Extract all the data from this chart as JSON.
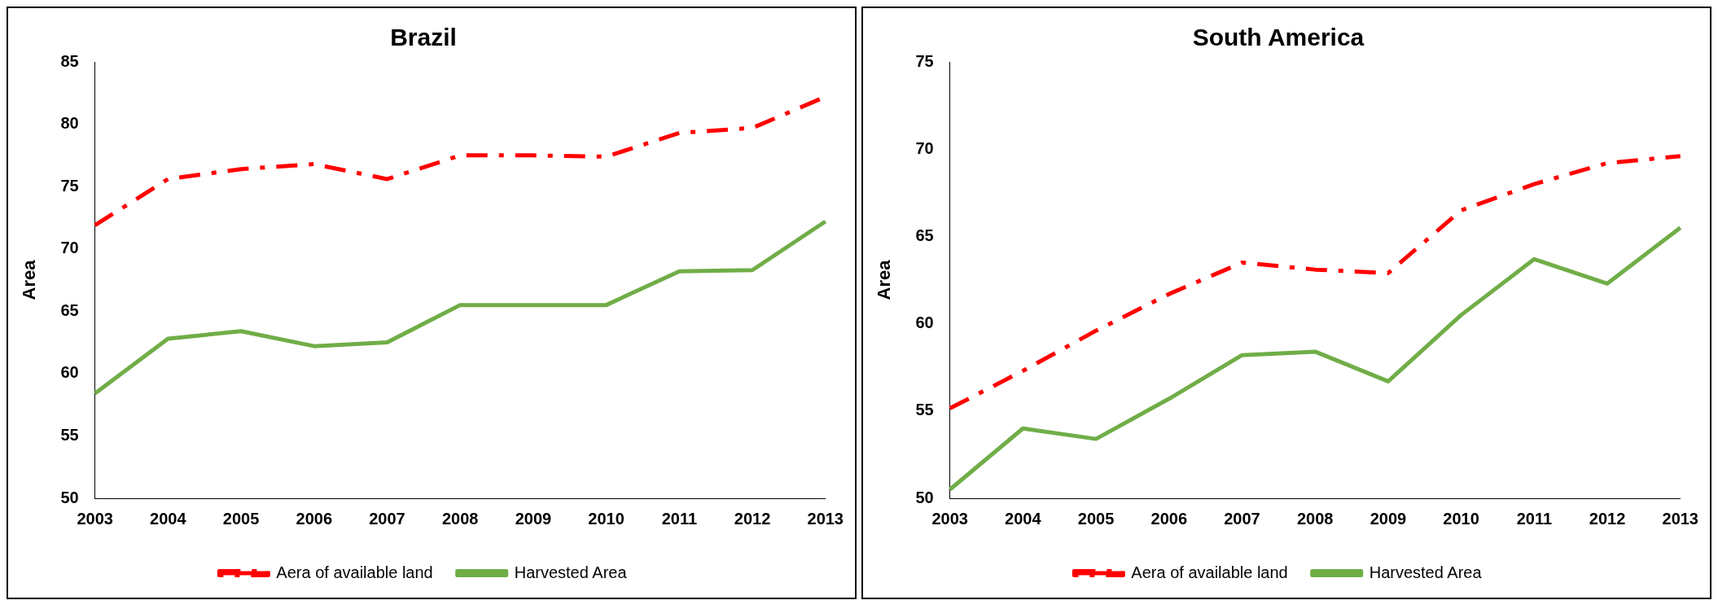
{
  "chart_data": [
    {
      "type": "line",
      "title": "Brazil",
      "ylabel": "Area",
      "categories": [
        "2003",
        "2004",
        "2005",
        "2006",
        "2007",
        "2008",
        "2009",
        "2010",
        "2011",
        "2012",
        "2013"
      ],
      "ylim": [
        50,
        85
      ],
      "yticks": [
        50,
        55,
        60,
        65,
        70,
        75,
        80,
        85
      ],
      "grid": false,
      "legend": "bottom",
      "marker": "none",
      "series": [
        {
          "name": "Aera of available land",
          "color": "#ff0000",
          "line_style": "dashed",
          "values": [
            71.9,
            75.6,
            76.4,
            76.8,
            75.6,
            77.5,
            77.5,
            77.4,
            79.3,
            79.7,
            82.2
          ]
        },
        {
          "name": "Harvested Area",
          "color": "#70ad47",
          "line_style": "solid",
          "values": [
            58.4,
            62.8,
            63.4,
            62.2,
            62.5,
            65.5,
            65.5,
            65.5,
            68.2,
            68.3,
            72.2
          ]
        }
      ]
    },
    {
      "type": "line",
      "title": "South America",
      "ylabel": "Area",
      "categories": [
        "2003",
        "2004",
        "2005",
        "2006",
        "2007",
        "2008",
        "2009",
        "2010",
        "2011",
        "2012",
        "2013"
      ],
      "ylim": [
        50,
        75
      ],
      "yticks": [
        50,
        55,
        60,
        65,
        70,
        75
      ],
      "grid": false,
      "legend": "bottom",
      "marker": "none",
      "series": [
        {
          "name": "Aera of available land",
          "color": "#ff0000",
          "line_style": "dashed",
          "values": [
            55.15,
            57.3,
            59.6,
            61.7,
            63.5,
            63.1,
            62.9,
            66.5,
            68.0,
            69.2,
            69.6
          ]
        },
        {
          "name": "Harvested Area",
          "color": "#70ad47",
          "line_style": "solid",
          "values": [
            50.5,
            54.0,
            53.4,
            55.7,
            58.2,
            58.4,
            56.7,
            60.5,
            63.7,
            62.3,
            65.5
          ]
        }
      ]
    }
  ]
}
